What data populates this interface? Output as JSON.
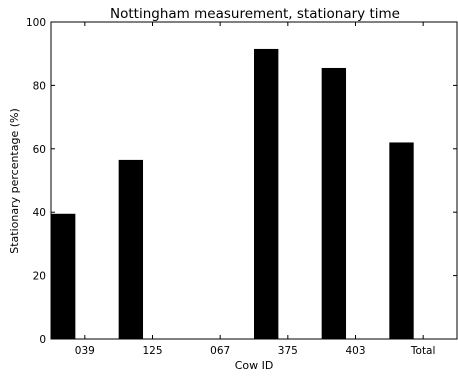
{
  "chart_data": {
    "type": "bar",
    "title": "Nottingham measurement, stationary time",
    "xlabel": "Cow ID",
    "ylabel": "Stationary percentage (%)",
    "categories": [
      "039",
      "125",
      "067",
      "375",
      "403",
      "Total"
    ],
    "values": [
      39.5,
      56.5,
      0,
      91.5,
      85.5,
      62
    ],
    "ylim": [
      0,
      100
    ],
    "yticks": [
      "0",
      "20",
      "40",
      "60",
      "80",
      "100"
    ],
    "grid": false,
    "legend": "none",
    "bar_color": "#000000"
  }
}
